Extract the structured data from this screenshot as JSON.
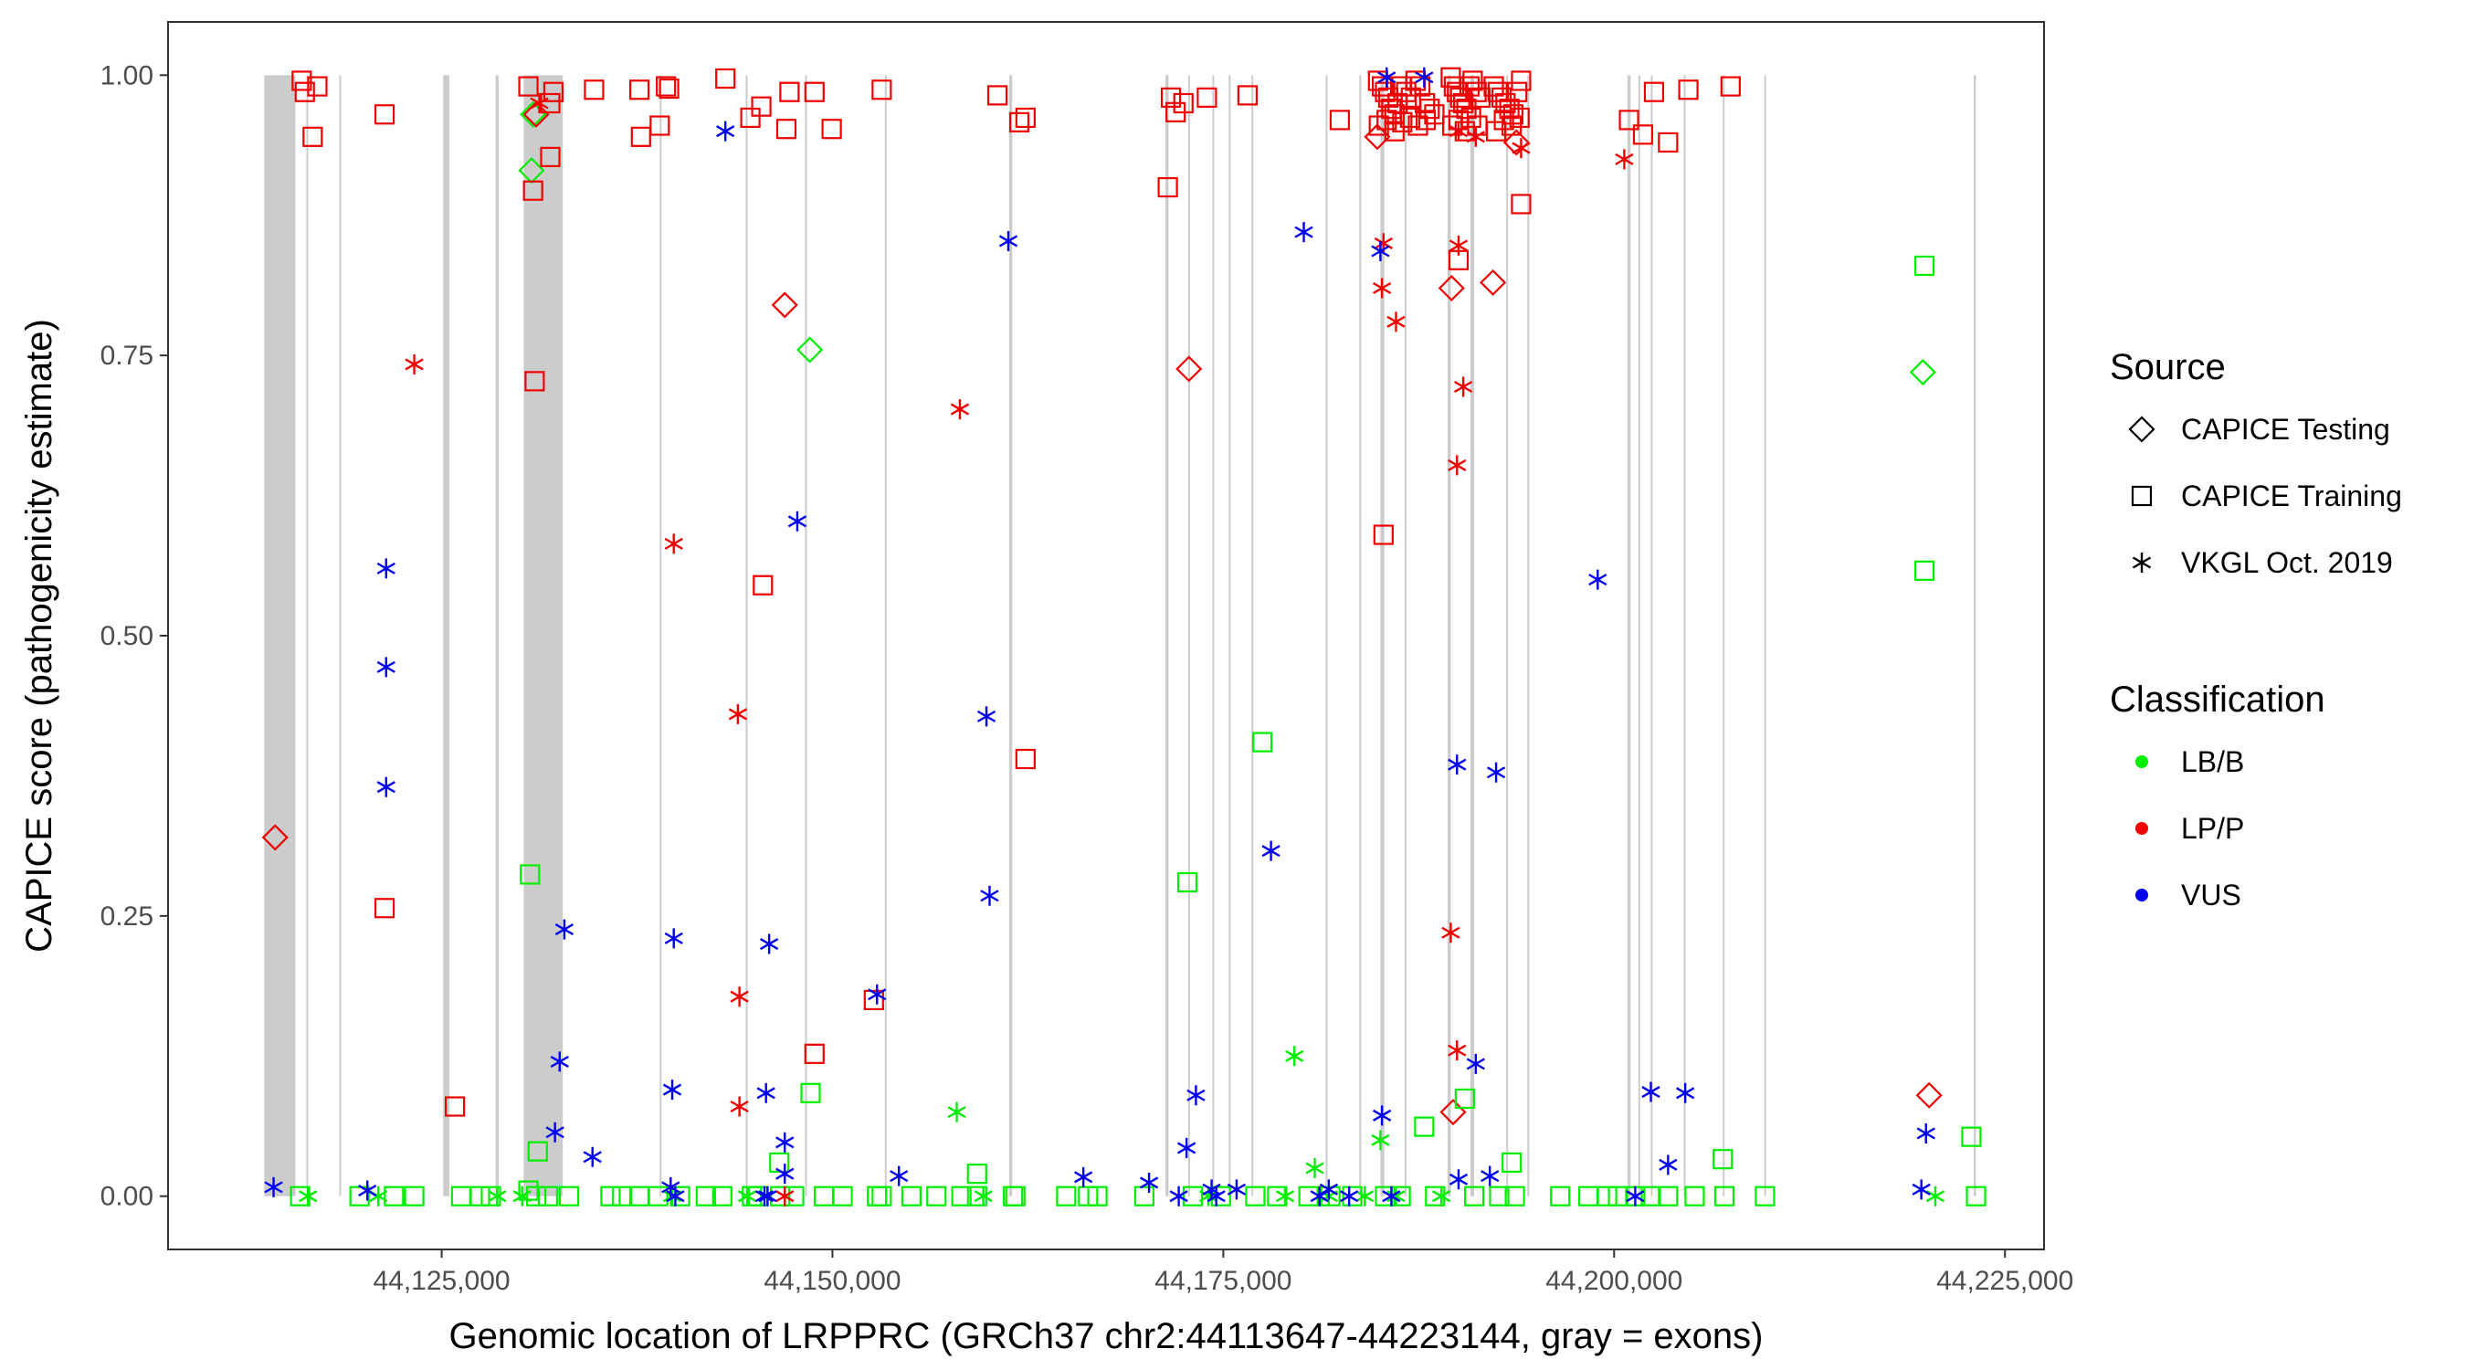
{
  "chart_data": {
    "type": "scatter",
    "title": "",
    "xlabel": "Genomic location of LRPPRC (GRCh37 chr2:44113647-44223144, gray = exons)",
    "ylabel": "CAPICE score (pathogenicity estimate)",
    "xlim": [
      44107500,
      44227500
    ],
    "ylim": [
      -0.0475,
      1.0475
    ],
    "x_ticks": [
      44125000,
      44150000,
      44175000,
      44200000,
      44225000
    ],
    "x_tick_labels": [
      "44,125,000",
      "44,150,000",
      "44,175,000",
      "44,200,000",
      "44,225,000"
    ],
    "y_ticks": [
      0,
      0.25,
      0.5,
      0.75,
      1.0
    ],
    "y_tick_labels": [
      "0.00",
      "0.25",
      "0.50",
      "0.75",
      "1.00"
    ],
    "exons": [
      [
        44113650,
        44115650
      ],
      [
        44116350,
        44116450
      ],
      [
        44118450,
        44118550
      ],
      [
        44125100,
        44125500
      ],
      [
        44128450,
        44128650
      ],
      [
        44130250,
        44132750
      ],
      [
        44138950,
        44139050
      ],
      [
        44144450,
        44144550
      ],
      [
        44148250,
        44148350
      ],
      [
        44153350,
        44153450
      ],
      [
        44161300,
        44161500
      ],
      [
        44171300,
        44171500
      ],
      [
        44172750,
        44172850
      ],
      [
        44174300,
        44174400
      ],
      [
        44175350,
        44175450
      ],
      [
        44176800,
        44176900
      ],
      [
        44181550,
        44181650
      ],
      [
        44183700,
        44183800
      ],
      [
        44185050,
        44185300
      ],
      [
        44186600,
        44186700
      ],
      [
        44189350,
        44189550
      ],
      [
        44190800,
        44191050
      ],
      [
        44193100,
        44193200
      ],
      [
        44194450,
        44194550
      ],
      [
        44200850,
        44201050
      ],
      [
        44201550,
        44201650
      ],
      [
        44202350,
        44202450
      ],
      [
        44204450,
        44204550
      ],
      [
        44206950,
        44207050
      ],
      [
        44209600,
        44209700
      ],
      [
        44223000,
        44223144
      ]
    ],
    "legend": {
      "source_title": "Source",
      "source_items": [
        {
          "label": "CAPICE Testing",
          "shape": "diamond"
        },
        {
          "label": "CAPICE Training",
          "shape": "square"
        },
        {
          "label": "VKGL Oct. 2019",
          "shape": "asterisk"
        }
      ],
      "class_title": "Classification",
      "class_items": [
        {
          "label": "LB/B",
          "color": "#00ee00"
        },
        {
          "label": "LP/P",
          "color": "#ee0000"
        },
        {
          "label": "VUS",
          "color": "#0000ee"
        }
      ]
    },
    "colors": {
      "LB/B": "#00ee00",
      "LP/P": "#ee0000",
      "VUS": "#0000ee"
    },
    "series": [
      {
        "name": "CAPICE Testing / LB/B",
        "shape": "diamond",
        "classification": "LB/B",
        "x": [
          44130850,
          44130750,
          44148550,
          44219750
        ],
        "y": [
          0.965,
          0.915,
          0.755,
          0.735
        ]
      },
      {
        "name": "CAPICE Testing / LP/P",
        "shape": "diamond",
        "classification": "LP/P",
        "x": [
          44114350,
          44131050,
          44146950,
          44172800,
          44184850,
          44189600,
          44192250,
          44193750,
          44189700,
          44220150
        ],
        "y": [
          0.32,
          0.965,
          0.795,
          0.738,
          0.945,
          0.81,
          0.815,
          0.94,
          0.075,
          0.09
        ]
      },
      {
        "name": "CAPICE Training / LB/B",
        "shape": "square",
        "classification": "LB/B",
        "x": [
          44130650,
          44131150,
          44146600,
          44148600,
          44172700,
          44177500,
          44219850,
          44219850,
          44222850,
          44206950,
          44187850,
          44190450,
          44193450,
          44128150,
          44131050,
          44131800,
          44135800,
          44141900,
          44145250,
          44146650,
          44147550,
          44153150,
          44159250,
          44161700,
          44185350,
          44186350,
          44202350,
          44115950,
          44119750,
          44121950,
          44123250,
          44126250,
          44127450,
          44130550,
          44133150,
          44136550,
          44137650,
          44138850,
          44140250,
          44142950,
          44144850,
          44149450,
          44150650,
          44152850,
          44155050,
          44156650,
          44158250,
          44159250,
          44161550,
          44164950,
          44166350,
          44166950,
          44169950,
          44173050,
          44174850,
          44177050,
          44178450,
          44180450,
          44181850,
          44183250,
          44188550,
          44191050,
          44192650,
          44193650,
          44196550,
          44198350,
          44199550,
          44200250,
          44201350,
          44203450,
          44205150,
          44207050,
          44209650,
          44223150
        ],
        "y": [
          0.287,
          0.04,
          0.03,
          0.092,
          0.28,
          0.405,
          0.83,
          0.558,
          0.053,
          0.033,
          0.062,
          0.087,
          0.03,
          0.0,
          0.0,
          0.0,
          0.0,
          0.0,
          0.0,
          0.0,
          0.0,
          0.0,
          0.0,
          0.0,
          0.0,
          0.0,
          0.0,
          0.0,
          0.0,
          0.0,
          0.0,
          0.0,
          0.0,
          0.005,
          0.0,
          0.0,
          0.0,
          0.0,
          0.0,
          0.0,
          0.0,
          0.0,
          0.0,
          0.0,
          0.0,
          0.0,
          0.0,
          0.02,
          0.0,
          0.0,
          0.0,
          0.0,
          0.0,
          0.0,
          0.0,
          0.0,
          0.0,
          0.0,
          0.0,
          0.0,
          0.0,
          0.0,
          0.0,
          0.0,
          0.0,
          0.0,
          0.0,
          0.0,
          0.0,
          0.0,
          0.0,
          0.0,
          0.0,
          0.0
        ]
      },
      {
        "name": "CAPICE Training / LP/P",
        "shape": "square",
        "classification": "LP/P",
        "x": [
          44116050,
          44116250,
          44117050,
          44116750,
          44121350,
          44121350,
          44125850,
          44130550,
          44130850,
          44130950,
          44132150,
          44131950,
          44131950,
          44134750,
          44137650,
          44137750,
          44139350,
          44139550,
          44138950,
          44143150,
          44145450,
          44144750,
          44145550,
          44147250,
          44147050,
          44148850,
          44149950,
          44153150,
          44152650,
          44148850,
          44160550,
          44161950,
          44162350,
          44162350,
          44171650,
          44171950,
          44172450,
          44171450,
          44173950,
          44176550,
          44182450,
          44185250,
          44190050,
          44194050,
          44202550,
          44200950,
          44201850,
          44203450,
          44204750,
          44207450
        ],
        "y": [
          0.995,
          0.985,
          0.99,
          0.945,
          0.965,
          0.257,
          0.08,
          0.99,
          0.897,
          0.727,
          0.985,
          0.975,
          0.927,
          0.987,
          0.987,
          0.945,
          0.99,
          0.988,
          0.955,
          0.997,
          0.972,
          0.962,
          0.545,
          0.985,
          0.952,
          0.985,
          0.952,
          0.987,
          0.175,
          0.127,
          0.982,
          0.958,
          0.962,
          0.39,
          0.98,
          0.967,
          0.975,
          0.9,
          0.98,
          0.982,
          0.96,
          0.59,
          0.835,
          0.885,
          0.985,
          0.96,
          0.947,
          0.94,
          0.987,
          0.99
        ]
      },
      {
        "name": "CAPICE Training / LP/P (exon cluster)",
        "shape": "square",
        "classification": "LP/P",
        "x": [
          44184900,
          44185150,
          44185350,
          44185550,
          44185750,
          44185950,
          44186150,
          44186400,
          44186700,
          44187000,
          44187300,
          44187600,
          44187900,
          44188200,
          44188500,
          44189550,
          44189750,
          44189950,
          44190150,
          44190350,
          44190550,
          44190750,
          44190950,
          44191200,
          44191450,
          44192300,
          44192550,
          44192800,
          44193050,
          44193300,
          44193550,
          44193800,
          44194050,
          44184950,
          44185450,
          44185950,
          44186450,
          44186950,
          44187450,
          44187950,
          44189650,
          44190050,
          44190450,
          44190850,
          44191250,
          44192450,
          44192950,
          44193450,
          44193950
        ],
        "y": [
          0.995,
          0.99,
          0.985,
          0.98,
          0.97,
          0.965,
          0.975,
          0.99,
          0.985,
          0.98,
          0.995,
          0.99,
          0.975,
          0.97,
          0.965,
          0.998,
          0.99,
          0.985,
          0.98,
          0.975,
          0.97,
          0.99,
          0.995,
          0.985,
          0.98,
          0.99,
          0.985,
          0.98,
          0.975,
          0.97,
          0.965,
          0.985,
          0.995,
          0.955,
          0.96,
          0.95,
          0.958,
          0.962,
          0.955,
          0.96,
          0.955,
          0.96,
          0.95,
          0.962,
          0.955,
          0.95,
          0.96,
          0.955,
          0.962
        ]
      },
      {
        "name": "VKGL Oct. 2019 / LB/B",
        "shape": "asterisk",
        "classification": "LB/B",
        "x": [
          44157950,
          44179550,
          44180850,
          44185050,
          44116450,
          44120950,
          44128550,
          44130150,
          44139750,
          44144550,
          44159650,
          44174050,
          44178950,
          44181750,
          44184050,
          44186050,
          44188950,
          44220550
        ],
        "y": [
          0.075,
          0.125,
          0.025,
          0.05,
          0.0,
          0.0,
          0.0,
          0.0,
          0.0,
          0.0,
          0.0,
          0.0,
          0.0,
          0.0,
          0.0,
          0.0,
          0.0,
          0.0
        ]
      },
      {
        "name": "VKGL Oct. 2019 / LP/P",
        "shape": "asterisk",
        "classification": "LP/P",
        "x": [
          44131250,
          44123250,
          44139850,
          44143950,
          44144050,
          44158150,
          44185250,
          44185150,
          44186050,
          44190050,
          44190350,
          44189950,
          44189550,
          44189950,
          44191150,
          44190050,
          44194050,
          44200650,
          44144050,
          44146950
        ],
        "y": [
          0.975,
          0.742,
          0.582,
          0.43,
          0.178,
          0.702,
          0.85,
          0.81,
          0.78,
          0.848,
          0.722,
          0.652,
          0.235,
          0.13,
          0.945,
          0.95,
          0.935,
          0.925,
          0.08,
          0.0
        ]
      },
      {
        "name": "VKGL Oct. 2019 / VUS",
        "shape": "asterisk",
        "classification": "VUS",
        "x": [
          44114250,
          44121450,
          44121450,
          44121450,
          44132850,
          44132550,
          44132250,
          44134650,
          44139850,
          44139750,
          44139650,
          44143150,
          44145950,
          44145750,
          44145650,
          44146950,
          44147750,
          44146950,
          44152850,
          44154250,
          44159850,
          44160050,
          44161250,
          44166050,
          44170250,
          44172650,
          44173250,
          44174250,
          44175850,
          44178050,
          44180150,
          44181750,
          44185050,
          44185150,
          44185450,
          44189950,
          44190050,
          44191150,
          44192450,
          44192050,
          44198950,
          44201350,
          44202350,
          44203450,
          44204550,
          44219650,
          44219950,
          44174550,
          44183050,
          44185750,
          44187850,
          44172150,
          44145850,
          44181150,
          44139950,
          44120250
        ],
        "y": [
          0.008,
          0.56,
          0.472,
          0.365,
          0.238,
          0.12,
          0.057,
          0.035,
          0.23,
          0.095,
          0.008,
          0.95,
          0.225,
          0.092,
          0.0,
          0.048,
          0.602,
          0.02,
          0.18,
          0.018,
          0.428,
          0.268,
          0.852,
          0.017,
          0.012,
          0.043,
          0.09,
          0.006,
          0.006,
          0.308,
          0.86,
          0.006,
          0.843,
          0.072,
          0.998,
          0.385,
          0.015,
          0.118,
          0.378,
          0.018,
          0.55,
          0.0,
          0.093,
          0.028,
          0.092,
          0.006,
          0.056,
          0.0,
          0.0,
          0.0,
          0.998,
          0.0,
          0.0,
          0.0,
          0.0,
          0.005
        ]
      }
    ]
  }
}
